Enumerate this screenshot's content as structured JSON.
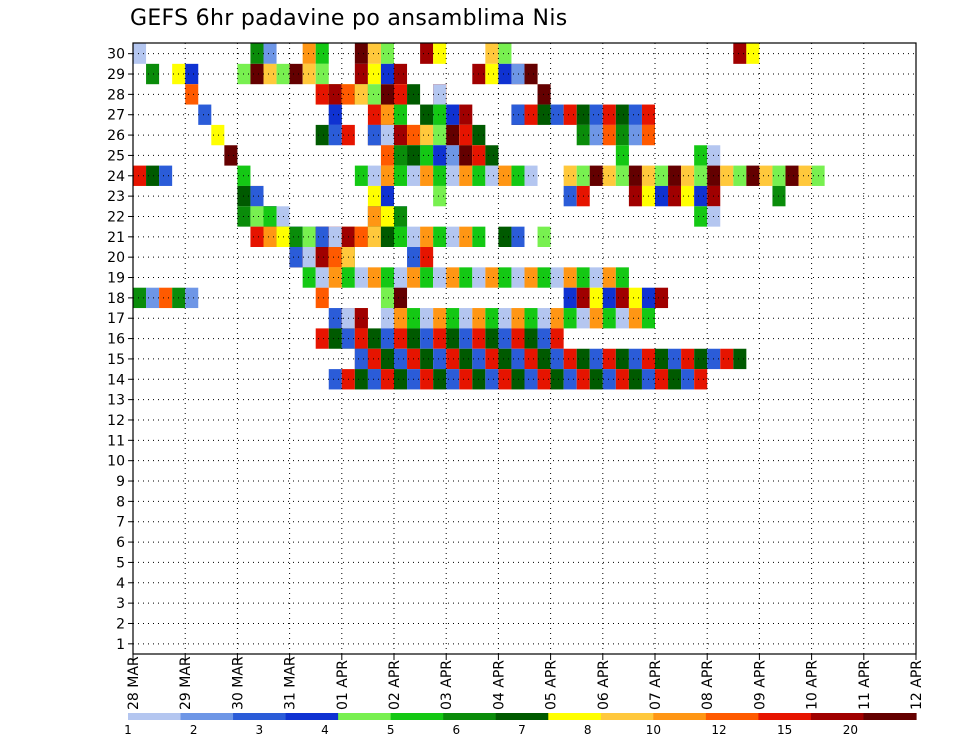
{
  "chart_data": {
    "type": "heatmap",
    "title": "GEFS 6hr padavine po ansamblima Nis",
    "y_categories": [
      "1",
      "2",
      "3",
      "4",
      "5",
      "6",
      "7",
      "8",
      "9",
      "10",
      "11",
      "12",
      "13",
      "14",
      "15",
      "16",
      "17",
      "18",
      "19",
      "20",
      "21",
      "22",
      "23",
      "24",
      "25",
      "26",
      "27",
      "28",
      "29",
      "30"
    ],
    "x_tick_labels": [
      "28 MAR",
      "29 MAR",
      "30 MAR",
      "31 MAR",
      "01 APR",
      "02 APR",
      "03 APR",
      "04 APR",
      "05 APR",
      "06 APR",
      "07 APR",
      "08 APR",
      "09 APR",
      "10 APR",
      "11 APR",
      "12 APR"
    ],
    "x_steps_per_day": 4,
    "x_time_steps": 60,
    "grid": true,
    "colorbar": {
      "labels": [
        "1",
        "2",
        "3",
        "4",
        "5",
        "6",
        "7",
        "8",
        "10",
        "12",
        "15",
        "20"
      ],
      "colors": [
        "#b4c6f0",
        "#6e96e6",
        "#2b5cd8",
        "#0f32d2",
        "#78f050",
        "#14c814",
        "#0a8c0a",
        "#005a00",
        "#ffff00",
        "#ffc83c",
        "#ff9614",
        "#ff5a00",
        "#e61400",
        "#a00000",
        "#640000"
      ]
    },
    "cells": [
      {
        "m": 30,
        "x": [
          0,
          9,
          10,
          13,
          14,
          17,
          18,
          19,
          22,
          23,
          27,
          28,
          46,
          47
        ]
      },
      {
        "m": 29,
        "x": [
          1,
          3,
          4,
          8,
          9,
          10,
          11,
          12,
          13,
          14,
          17,
          18,
          19,
          20,
          26,
          27,
          28,
          29,
          29,
          30,
          30
        ]
      },
      {
        "m": 28,
        "x": [
          4,
          14,
          14,
          15,
          15,
          15,
          16,
          16,
          17,
          17,
          18,
          19,
          20,
          20,
          21,
          23,
          23,
          23,
          31
        ]
      },
      {
        "m": 27,
        "x": [
          5,
          15,
          15,
          18,
          19,
          19,
          20,
          22,
          23,
          23,
          24,
          24,
          25,
          29,
          29,
          30,
          31,
          32,
          33,
          34,
          35,
          36,
          37,
          38,
          39
        ]
      },
      {
        "m": 26,
        "x": [
          6,
          14,
          15,
          16,
          18,
          18,
          19,
          19,
          20,
          20,
          21,
          21,
          22,
          22,
          23,
          24,
          25,
          25,
          26,
          34,
          35,
          36,
          37,
          38,
          39
        ]
      },
      {
        "m": 25,
        "x": [
          7,
          19,
          20,
          21,
          21,
          21,
          22,
          22,
          23,
          23,
          24,
          24,
          25,
          25,
          26,
          26,
          27,
          37,
          43,
          44
        ]
      },
      {
        "m": 24,
        "x": [
          8,
          0,
          1,
          2,
          17,
          18,
          19,
          20,
          21,
          22,
          23,
          24,
          25,
          26,
          27,
          28,
          29,
          30,
          33,
          34,
          35,
          36,
          37,
          38,
          39,
          40,
          41,
          42,
          43,
          44,
          45,
          46,
          47,
          48,
          49,
          50,
          51,
          52
        ]
      },
      {
        "m": 23,
        "x": [
          9,
          8,
          9,
          18,
          19,
          23,
          33,
          34,
          38,
          39,
          40,
          41,
          42,
          43,
          44,
          49
        ]
      },
      {
        "m": 22,
        "x": [
          10,
          8,
          9,
          9,
          10,
          10,
          10,
          11,
          18,
          18,
          19,
          19,
          20,
          20,
          43,
          44
        ]
      },
      {
        "m": 21,
        "x": [
          11,
          9,
          10,
          10,
          11,
          11,
          12,
          12,
          13,
          13,
          14,
          14,
          15,
          15,
          16,
          16,
          17,
          17,
          18,
          18,
          19,
          19,
          20,
          20,
          21,
          22,
          23,
          24,
          25,
          26,
          28,
          29,
          31
        ]
      },
      {
        "m": 20,
        "x": [
          12,
          12,
          13,
          13,
          14,
          14,
          15,
          15,
          16,
          16,
          21,
          22
        ]
      },
      {
        "m": 19,
        "x": [
          13,
          14,
          15,
          16,
          17,
          18,
          19,
          20,
          21,
          22,
          23,
          24,
          25,
          26,
          27,
          28,
          29,
          30,
          31,
          32,
          33,
          34,
          35,
          36,
          37
        ]
      },
      {
        "m": 18,
        "x": [
          14,
          0,
          1,
          2,
          3,
          4,
          19,
          20,
          33,
          34,
          35,
          36,
          37,
          38,
          39,
          40
        ]
      },
      {
        "m": 17,
        "x": [
          15,
          16,
          16,
          17,
          17,
          19,
          20,
          21,
          22,
          23,
          24,
          25,
          26,
          27,
          28,
          29,
          30,
          31,
          32,
          33,
          34,
          35,
          36,
          37,
          38,
          39
        ]
      },
      {
        "m": 16,
        "x": [
          16,
          14,
          15,
          16,
          17,
          18,
          19,
          20,
          21,
          22,
          23,
          24,
          25,
          26,
          27,
          28,
          29,
          30,
          31,
          32
        ]
      },
      {
        "m": 15,
        "x": [
          17,
          17,
          18,
          19,
          20,
          21,
          22,
          23,
          24,
          25,
          26,
          27,
          28,
          29,
          30,
          31,
          32,
          33,
          34,
          35,
          36,
          37,
          38,
          39,
          40,
          41,
          42,
          43,
          44,
          45,
          46
        ]
      },
      {
        "m": 14,
        "x": [
          18,
          15,
          16,
          17,
          18,
          19,
          20,
          21,
          22,
          23,
          24,
          25,
          26,
          27,
          28,
          29,
          30,
          31,
          32,
          33,
          34,
          35,
          36,
          37,
          38,
          39,
          40,
          41,
          42,
          43
        ]
      }
    ]
  }
}
